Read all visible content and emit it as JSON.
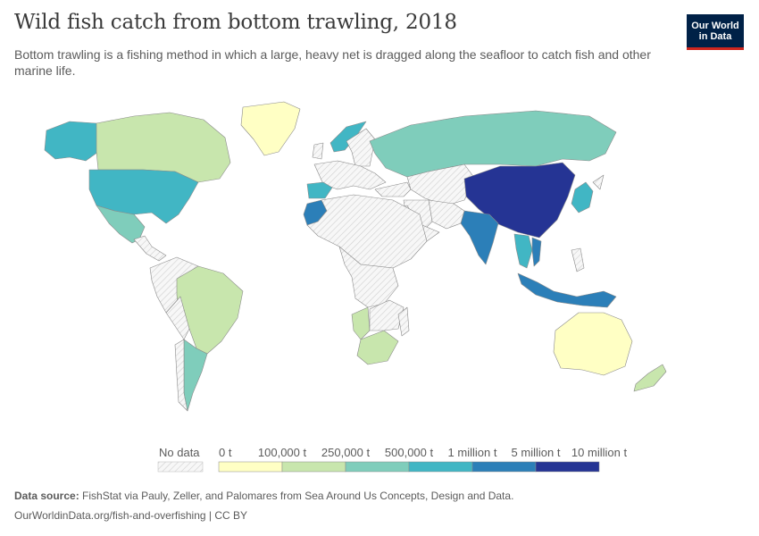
{
  "header": {
    "title": "Wild fish catch from bottom trawling, 2018",
    "subtitle": "Bottom trawling is a fishing method in which a large, heavy net is dragged along the seafloor to catch fish and other marine life.",
    "logo_line1": "Our World",
    "logo_line2": "in Data"
  },
  "legend": {
    "no_data_label": "No data",
    "bins": [
      {
        "label": "0 t",
        "color": "#ffffc4"
      },
      {
        "label": "100,000 t",
        "color": "#c8e6ad"
      },
      {
        "label": "250,000 t",
        "color": "#7fcdbb"
      },
      {
        "label": "500,000 t",
        "color": "#41b6c4"
      },
      {
        "label": "1 million t",
        "color": "#2c7fb8"
      },
      {
        "label": "5 million t",
        "color": "#253494"
      },
      {
        "label": "10 million t",
        "color": null
      }
    ],
    "no_data_color": "#ebebeb"
  },
  "map_data": [
    {
      "region": "China",
      "bin": 5
    },
    {
      "region": "India",
      "bin": 4
    },
    {
      "region": "Indonesia",
      "bin": 4
    },
    {
      "region": "Vietnam",
      "bin": 4
    },
    {
      "region": "Morocco",
      "bin": 4
    },
    {
      "region": "United States",
      "bin": 3
    },
    {
      "region": "Thailand",
      "bin": 3
    },
    {
      "region": "Alaska",
      "bin": 3
    },
    {
      "region": "Norway",
      "bin": 3
    },
    {
      "region": "Spain",
      "bin": 3
    },
    {
      "region": "Japan",
      "bin": 3
    },
    {
      "region": "Russia",
      "bin": 2
    },
    {
      "region": "Mexico",
      "bin": 2
    },
    {
      "region": "Argentina",
      "bin": 2
    },
    {
      "region": "Canada",
      "bin": 1
    },
    {
      "region": "Brazil",
      "bin": 1
    },
    {
      "region": "Namibia",
      "bin": 1
    },
    {
      "region": "South Africa",
      "bin": 1
    },
    {
      "region": "New Zealand",
      "bin": 1
    },
    {
      "region": "Australia",
      "bin": 0
    },
    {
      "region": "Greenland",
      "bin": 0
    }
  ],
  "footer": {
    "source_label": "Data source:",
    "source_text": "FishStat via Pauly, Zeller, and Palomares from Sea Around Us Concepts, Design and Data.",
    "url_text": "OurWorldinData.org/fish-and-overfishing | CC BY"
  }
}
